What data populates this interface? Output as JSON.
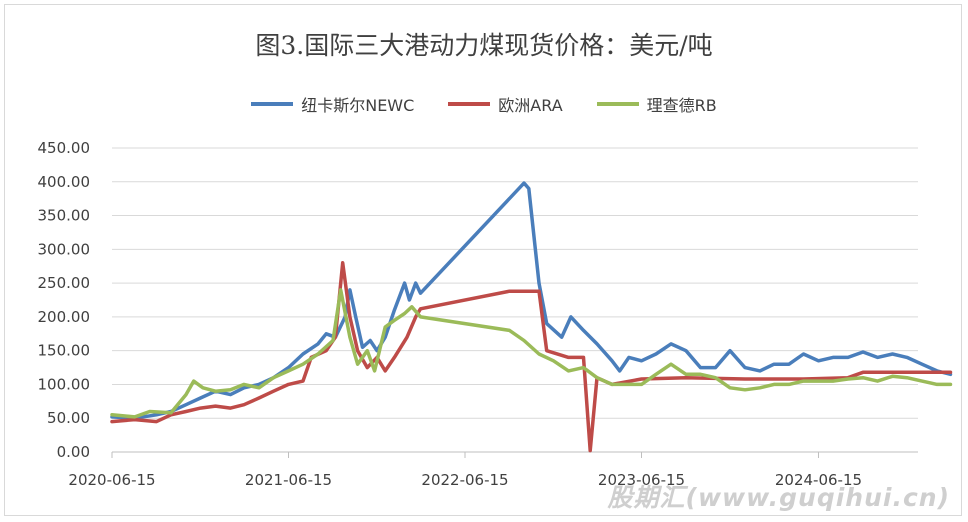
{
  "chart_data": {
    "type": "line",
    "title": "图3.国际三大港动力煤现货价格：美元/吨",
    "xlabel": "",
    "ylabel": "",
    "ylim": [
      0,
      450
    ],
    "yticks": [
      "0.00",
      "50.00",
      "100.00",
      "150.00",
      "200.00",
      "250.00",
      "300.00",
      "350.00",
      "400.00",
      "450.00"
    ],
    "xticks": [
      "2020-06-15",
      "2021-06-15",
      "2022-06-15",
      "2023-06-15",
      "2024-06-15"
    ],
    "grid": "horizontal",
    "legend_position": "top",
    "series": [
      {
        "name": "纽卡斯尔NEWC",
        "color": "#4a7ebb",
        "points": [
          [
            "2020-06-15",
            52
          ],
          [
            "2020-08-01",
            50
          ],
          [
            "2020-09-15",
            55
          ],
          [
            "2020-10-15",
            60
          ],
          [
            "2020-11-15",
            70
          ],
          [
            "2020-12-15",
            80
          ],
          [
            "2021-01-15",
            90
          ],
          [
            "2021-02-15",
            85
          ],
          [
            "2021-03-15",
            95
          ],
          [
            "2021-04-15",
            100
          ],
          [
            "2021-05-15",
            110
          ],
          [
            "2021-06-15",
            125
          ],
          [
            "2021-07-15",
            145
          ],
          [
            "2021-08-15",
            160
          ],
          [
            "2021-09-01",
            175
          ],
          [
            "2021-09-20",
            170
          ],
          [
            "2021-10-10",
            200
          ],
          [
            "2021-10-20",
            240
          ],
          [
            "2021-11-01",
            200
          ],
          [
            "2021-11-15",
            155
          ],
          [
            "2021-12-01",
            165
          ],
          [
            "2021-12-15",
            150
          ],
          [
            "2022-01-01",
            170
          ],
          [
            "2022-01-20",
            210
          ],
          [
            "2022-02-10",
            250
          ],
          [
            "2022-02-20",
            225
          ],
          [
            "2022-03-05",
            250
          ],
          [
            "2022-03-15",
            235
          ],
          [
            "2022-10-15",
            398
          ],
          [
            "2022-10-25",
            390
          ],
          [
            "2022-11-15",
            250
          ],
          [
            "2022-12-01",
            190
          ],
          [
            "2023-01-01",
            170
          ],
          [
            "2023-01-20",
            200
          ],
          [
            "2023-02-15",
            180
          ],
          [
            "2023-03-15",
            160
          ],
          [
            "2023-04-15",
            135
          ],
          [
            "2023-05-01",
            120
          ],
          [
            "2023-05-20",
            140
          ],
          [
            "2023-06-15",
            135
          ],
          [
            "2023-07-15",
            145
          ],
          [
            "2023-08-15",
            160
          ],
          [
            "2023-09-15",
            150
          ],
          [
            "2023-10-15",
            125
          ],
          [
            "2023-11-15",
            125
          ],
          [
            "2023-12-15",
            150
          ],
          [
            "2024-01-15",
            125
          ],
          [
            "2024-02-15",
            120
          ],
          [
            "2024-03-15",
            130
          ],
          [
            "2024-04-15",
            130
          ],
          [
            "2024-05-15",
            145
          ],
          [
            "2024-06-15",
            135
          ],
          [
            "2024-07-15",
            140
          ],
          [
            "2024-08-15",
            140
          ],
          [
            "2024-09-15",
            148
          ],
          [
            "2024-10-15",
            140
          ],
          [
            "2024-11-15",
            145
          ],
          [
            "2024-12-15",
            140
          ],
          [
            "2025-01-15",
            130
          ],
          [
            "2025-02-15",
            120
          ],
          [
            "2025-03-15",
            115
          ]
        ]
      },
      {
        "name": "欧洲ARA",
        "color": "#be4b48",
        "points": [
          [
            "2020-06-15",
            45
          ],
          [
            "2020-08-01",
            48
          ],
          [
            "2020-09-15",
            45
          ],
          [
            "2020-10-15",
            55
          ],
          [
            "2020-11-15",
            60
          ],
          [
            "2020-12-15",
            65
          ],
          [
            "2021-01-15",
            68
          ],
          [
            "2021-02-15",
            65
          ],
          [
            "2021-03-15",
            70
          ],
          [
            "2021-04-15",
            80
          ],
          [
            "2021-05-15",
            90
          ],
          [
            "2021-06-15",
            100
          ],
          [
            "2021-07-15",
            105
          ],
          [
            "2021-08-01",
            140
          ],
          [
            "2021-09-01",
            150
          ],
          [
            "2021-09-20",
            170
          ],
          [
            "2021-10-05",
            280
          ],
          [
            "2021-10-20",
            200
          ],
          [
            "2021-11-05",
            150
          ],
          [
            "2021-11-25",
            125
          ],
          [
            "2021-12-15",
            140
          ],
          [
            "2022-01-01",
            120
          ],
          [
            "2022-01-20",
            140
          ],
          [
            "2022-02-15",
            170
          ],
          [
            "2022-03-05",
            200
          ],
          [
            "2022-03-15",
            212
          ],
          [
            "2022-09-15",
            238
          ],
          [
            "2022-11-15",
            238
          ],
          [
            "2022-12-01",
            150
          ],
          [
            "2023-01-15",
            140
          ],
          [
            "2023-02-15",
            140
          ],
          [
            "2023-03-01",
            2
          ],
          [
            "2023-03-15",
            110
          ],
          [
            "2023-04-15",
            100
          ],
          [
            "2023-06-15",
            108
          ],
          [
            "2023-09-15",
            110
          ],
          [
            "2024-01-15",
            108
          ],
          [
            "2024-05-15",
            108
          ],
          [
            "2024-08-15",
            110
          ],
          [
            "2024-09-15",
            118
          ],
          [
            "2025-03-15",
            118
          ]
        ]
      },
      {
        "name": "理查德RB",
        "color": "#9bbb59",
        "points": [
          [
            "2020-06-15",
            55
          ],
          [
            "2020-08-01",
            52
          ],
          [
            "2020-09-01",
            60
          ],
          [
            "2020-10-15",
            58
          ],
          [
            "2020-11-15",
            85
          ],
          [
            "2020-12-01",
            105
          ],
          [
            "2020-12-20",
            95
          ],
          [
            "2021-01-15",
            90
          ],
          [
            "2021-02-15",
            92
          ],
          [
            "2021-03-15",
            100
          ],
          [
            "2021-04-15",
            95
          ],
          [
            "2021-05-15",
            110
          ],
          [
            "2021-06-15",
            120
          ],
          [
            "2021-07-15",
            130
          ],
          [
            "2021-08-15",
            145
          ],
          [
            "2021-09-15",
            165
          ],
          [
            "2021-10-01",
            240
          ],
          [
            "2021-10-20",
            170
          ],
          [
            "2021-11-05",
            130
          ],
          [
            "2021-11-25",
            150
          ],
          [
            "2021-12-10",
            120
          ],
          [
            "2022-01-01",
            185
          ],
          [
            "2022-01-20",
            195
          ],
          [
            "2022-02-10",
            205
          ],
          [
            "2022-02-25",
            215
          ],
          [
            "2022-03-15",
            200
          ],
          [
            "2022-09-15",
            180
          ],
          [
            "2022-10-15",
            165
          ],
          [
            "2022-11-15",
            145
          ],
          [
            "2022-12-15",
            135
          ],
          [
            "2023-01-15",
            120
          ],
          [
            "2023-02-15",
            125
          ],
          [
            "2023-03-15",
            110
          ],
          [
            "2023-04-15",
            100
          ],
          [
            "2023-05-15",
            100
          ],
          [
            "2023-06-15",
            100
          ],
          [
            "2023-07-15",
            115
          ],
          [
            "2023-08-15",
            130
          ],
          [
            "2023-09-15",
            115
          ],
          [
            "2023-10-15",
            115
          ],
          [
            "2023-11-15",
            110
          ],
          [
            "2023-12-15",
            95
          ],
          [
            "2024-01-15",
            92
          ],
          [
            "2024-02-15",
            95
          ],
          [
            "2024-03-15",
            100
          ],
          [
            "2024-04-15",
            100
          ],
          [
            "2024-05-15",
            105
          ],
          [
            "2024-06-15",
            105
          ],
          [
            "2024-07-15",
            105
          ],
          [
            "2024-08-15",
            108
          ],
          [
            "2024-09-15",
            110
          ],
          [
            "2024-10-15",
            105
          ],
          [
            "2024-11-15",
            112
          ],
          [
            "2024-12-15",
            110
          ],
          [
            "2025-01-15",
            105
          ],
          [
            "2025-02-15",
            100
          ],
          [
            "2025-03-15",
            100
          ]
        ]
      }
    ]
  },
  "watermark": "股期汇(www.guqihui.cn)"
}
